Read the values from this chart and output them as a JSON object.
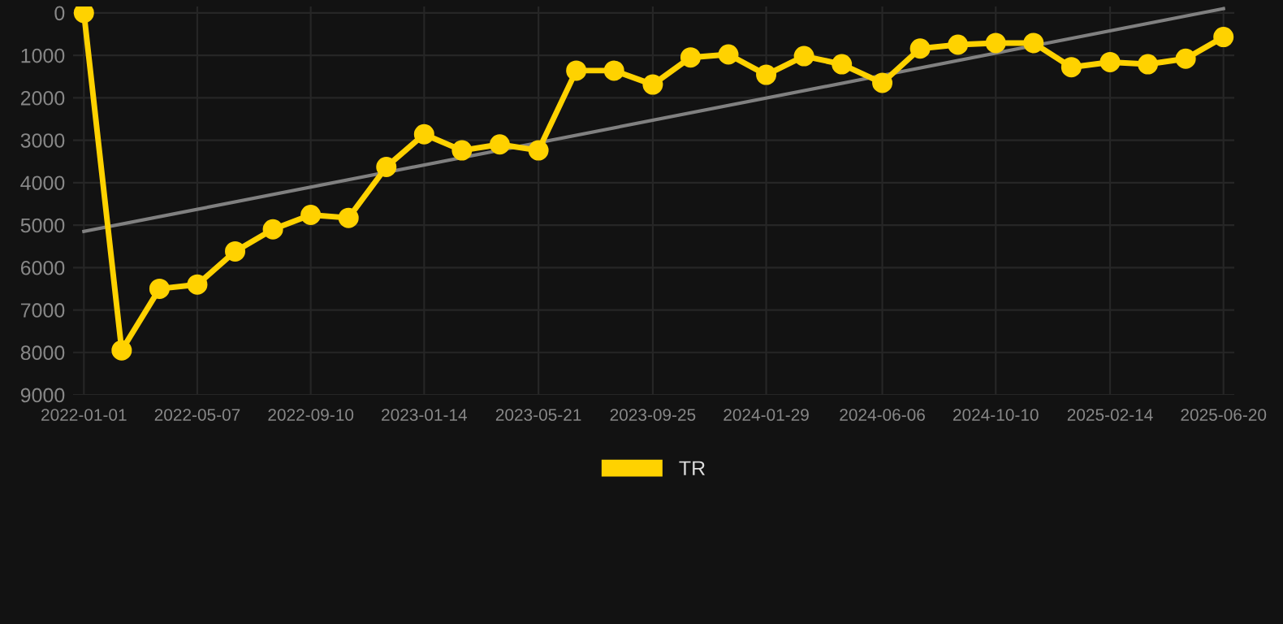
{
  "chart_data": {
    "type": "line",
    "x": [
      "2022-01-01",
      "2022-02-12",
      "2022-03-26",
      "2022-05-07",
      "2022-06-18",
      "2022-07-30",
      "2022-09-10",
      "2022-10-22",
      "2022-12-03",
      "2023-01-14",
      "2023-02-25",
      "2023-04-08",
      "2023-05-21",
      "2023-07-02",
      "2023-08-13",
      "2023-09-25",
      "2023-11-06",
      "2023-12-18",
      "2024-01-29",
      "2024-03-11",
      "2024-04-22",
      "2024-06-06",
      "2024-07-18",
      "2024-08-29",
      "2024-10-10",
      "2024-11-21",
      "2025-01-02",
      "2025-02-14",
      "2025-03-28",
      "2025-05-09",
      "2025-06-20"
    ],
    "series": [
      {
        "name": "TR",
        "color": "#ffd200",
        "marker": "circle",
        "values": [
          0,
          7950,
          6500,
          6400,
          5620,
          5100,
          4760,
          4830,
          3630,
          2860,
          3240,
          3100,
          3240,
          1360,
          1360,
          1690,
          1050,
          980,
          1460,
          1020,
          1210,
          1650,
          840,
          750,
          710,
          710,
          1280,
          1160,
          1210,
          1080,
          570
        ]
      },
      {
        "type": "line",
        "color": "#808080",
        "marker": "none",
        "x": [
          "2022-01-01",
          "2025-06-20"
        ],
        "values": [
          5150,
          -100
        ]
      }
    ],
    "xlim": [
      "2021-12-20",
      "2025-07-02"
    ],
    "ylim": [
      9000,
      -150
    ],
    "xticks": [
      "2022-01-01",
      "2022-05-07",
      "2022-09-10",
      "2023-01-14",
      "2023-05-21",
      "2023-09-25",
      "2024-01-29",
      "2024-06-06",
      "2024-10-10",
      "2025-02-14",
      "2025-06-20"
    ],
    "yticks": [
      0,
      1000,
      2000,
      3000,
      4000,
      5000,
      6000,
      7000,
      8000,
      9000
    ],
    "grid": true,
    "legend": "bottom",
    "line_style": "solid"
  }
}
